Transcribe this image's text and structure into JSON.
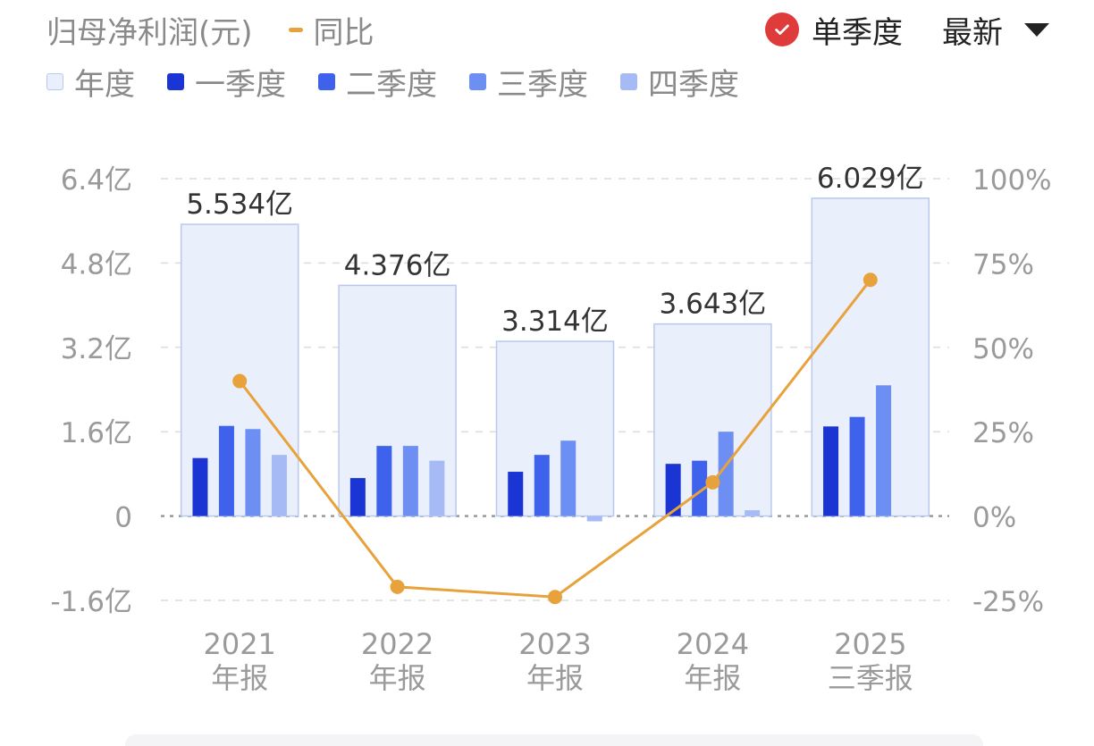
{
  "header": {
    "title": "归母净利润(元)",
    "yoy_label": "同比",
    "mode_label": "单季度",
    "latest_label": "最新"
  },
  "legend": [
    {
      "label": "年度",
      "color": "#eaeffc"
    },
    {
      "label": "一季度",
      "color": "#1a35d4"
    },
    {
      "label": "二季度",
      "color": "#3f62ec"
    },
    {
      "label": "三季度",
      "color": "#6d8ef2"
    },
    {
      "label": "四季度",
      "color": "#a6baf6"
    }
  ],
  "chart_data": {
    "type": "bar",
    "categories": [
      {
        "year": "2021",
        "period": "年报"
      },
      {
        "year": "2022",
        "period": "年报"
      },
      {
        "year": "2023",
        "period": "年报"
      },
      {
        "year": "2024",
        "period": "年报"
      },
      {
        "year": "2025",
        "period": "三季报"
      }
    ],
    "annual": {
      "name": "年度",
      "values": [
        5.534,
        4.376,
        3.314,
        3.643,
        6.029
      ],
      "labels": [
        "5.534亿",
        "4.376亿",
        "3.314亿",
        "3.643亿",
        "6.029亿"
      ]
    },
    "quarters": [
      {
        "name": "一季度",
        "values": [
          1.1,
          0.72,
          0.84,
          0.99,
          1.7
        ]
      },
      {
        "name": "二季度",
        "values": [
          1.71,
          1.33,
          1.16,
          1.05,
          1.88
        ]
      },
      {
        "name": "三季度",
        "values": [
          1.65,
          1.33,
          1.43,
          1.6,
          2.48
        ]
      },
      {
        "name": "四季度",
        "values": [
          1.16,
          1.05,
          -0.1,
          0.11,
          null
        ]
      }
    ],
    "yoy": {
      "name": "同比",
      "unit": "%",
      "values": [
        40,
        -21,
        -24,
        10,
        70
      ]
    },
    "y_left": {
      "min": -1.6,
      "max": 6.4,
      "ticks": [
        "6.4亿",
        "4.8亿",
        "3.2亿",
        "1.6亿",
        "0",
        "-1.6亿"
      ],
      "tick_values": [
        6.4,
        4.8,
        3.2,
        1.6,
        0,
        -1.6
      ]
    },
    "y_right": {
      "min": -25,
      "max": 100,
      "ticks": [
        "100%",
        "75%",
        "50%",
        "25%",
        "0%",
        "-25%"
      ],
      "tick_values": [
        100,
        75,
        50,
        25,
        0,
        -25
      ]
    },
    "grid": true,
    "colors": {
      "annual_fill": "#eaeffc",
      "annual_stroke": "#b9c9ee",
      "line": "#e8a23c",
      "grid": "#dcdcdc",
      "zero": "#9a9a9a",
      "axis_text": "#9a9a9a",
      "label_text": "#333333"
    }
  }
}
